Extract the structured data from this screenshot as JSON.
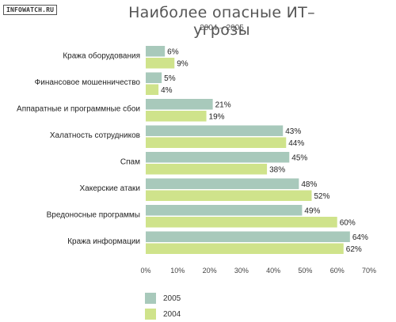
{
  "brand": "INFOWATCH.RU",
  "colors": {
    "s2005": "#a8c9bb",
    "s2004": "#cfe38b",
    "axis": "#999999",
    "text": "#222222"
  },
  "chart_data": {
    "type": "bar",
    "orientation": "horizontal",
    "title": "Наиболее опасные ИТ–угрозы",
    "subtitle": "2004 – 2005",
    "categories": [
      "Кража оборудования",
      "Финансовое мошенничество",
      "Аппаратные и программные сбои",
      "Халатность сотрудников",
      "Спам",
      "Хакерские атаки",
      "Вредоносные программы",
      "Кража информации"
    ],
    "series": [
      {
        "name": "2005",
        "color": "#a8c9bb",
        "values": [
          6,
          5,
          21,
          43,
          45,
          48,
          49,
          64
        ]
      },
      {
        "name": "2004",
        "color": "#cfe38b",
        "values": [
          9,
          4,
          19,
          44,
          38,
          52,
          60,
          62
        ]
      }
    ],
    "value_suffix": "%",
    "xlim": [
      0,
      70
    ],
    "ticks": [
      "0%",
      "10%",
      "20%",
      "30%",
      "40%",
      "50%",
      "60%",
      "70%"
    ],
    "legend": "bottom-left",
    "grid": false
  }
}
